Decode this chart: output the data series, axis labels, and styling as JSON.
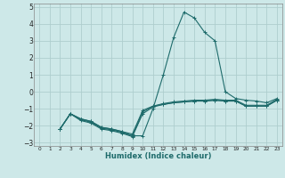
{
  "xlabel": "Humidex (Indice chaleur)",
  "xlim": [
    -0.5,
    23.5
  ],
  "ylim": [
    -3.2,
    5.2
  ],
  "xticks": [
    0,
    1,
    2,
    3,
    4,
    5,
    6,
    7,
    8,
    9,
    10,
    11,
    12,
    13,
    14,
    15,
    16,
    17,
    18,
    19,
    20,
    21,
    22,
    23
  ],
  "yticks": [
    -3,
    -2,
    -1,
    0,
    1,
    2,
    3,
    4,
    5
  ],
  "bg_color": "#cde8e8",
  "grid_color": "#aecece",
  "line_color": "#1e6b6b",
  "series": [
    [
      null,
      null,
      -2.2,
      -1.3,
      -1.6,
      -1.75,
      -2.1,
      -2.2,
      -2.35,
      -2.5,
      -1.1,
      -0.85,
      -0.75,
      -0.65,
      -0.6,
      -0.55,
      -0.55,
      -0.5,
      -0.55,
      -0.55,
      -0.85,
      -0.85,
      -0.85,
      -0.5
    ],
    [
      null,
      null,
      -2.2,
      -1.3,
      -1.65,
      -1.8,
      -2.15,
      -2.25,
      -2.4,
      -2.6,
      -1.2,
      -0.85,
      -0.7,
      -0.6,
      -0.55,
      -0.5,
      -0.5,
      -0.45,
      -0.5,
      -0.5,
      -0.8,
      -0.8,
      -0.8,
      -0.45
    ],
    [
      null,
      null,
      -2.2,
      -1.3,
      -1.7,
      -1.85,
      -2.2,
      -2.3,
      -2.45,
      -2.65,
      -1.3,
      -0.9,
      -0.75,
      -0.65,
      -0.6,
      -0.55,
      -0.55,
      -0.5,
      -0.55,
      -0.55,
      -0.85,
      -0.85,
      -0.85,
      -0.5
    ],
    [
      null,
      null,
      -2.2,
      -1.3,
      -1.6,
      -1.75,
      -2.1,
      -2.2,
      -2.35,
      -2.6,
      -2.6,
      -1.0,
      1.0,
      3.2,
      4.7,
      4.35,
      3.5,
      3.0,
      0.0,
      -0.4,
      -0.5,
      -0.55,
      -0.65,
      -0.4
    ]
  ]
}
